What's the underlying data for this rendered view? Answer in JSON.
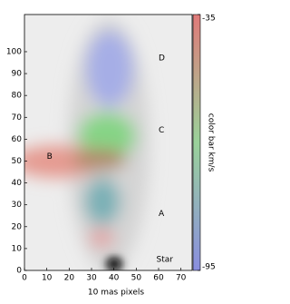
{
  "chart_data": {
    "type": "image",
    "xlabel": "10 mas pixels",
    "xlim": [
      0,
      75
    ],
    "xticks": [
      0,
      10,
      20,
      30,
      40,
      50,
      60,
      70
    ],
    "ylim": [
      0,
      117
    ],
    "yticks": [
      0,
      10,
      20,
      30,
      40,
      50,
      60,
      70,
      80,
      90,
      100
    ],
    "annotations": [
      {
        "text": "D",
        "x": 60,
        "y": 97
      },
      {
        "text": "C",
        "x": 60,
        "y": 64
      },
      {
        "text": "B",
        "x": 10,
        "y": 52
      },
      {
        "text": "A",
        "x": 60,
        "y": 26
      },
      {
        "text": "Star",
        "x": 59,
        "y": 5
      }
    ],
    "colorbar": {
      "label": "color bar km/s",
      "lim": [
        -95,
        -35
      ],
      "ticks": [
        -95,
        -35
      ],
      "colors": [
        "#8a8ee0",
        "#9ad29a",
        "#e07a7a"
      ]
    }
  }
}
